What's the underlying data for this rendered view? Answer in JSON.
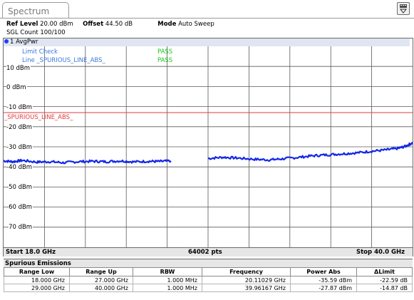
{
  "tab": {
    "title": "Spectrum"
  },
  "info": {
    "ref_level_label": "Ref Level",
    "ref_level_value": "20.00 dBm",
    "offset_label": "Offset",
    "offset_value": "44.50 dB",
    "mode_label": "Mode",
    "mode_value": "Auto Sweep",
    "sgl_count": "SGL Count 100/100"
  },
  "trace": {
    "header": "1 AvgPwr"
  },
  "limit": {
    "check_label": "Limit Check",
    "check_result": "PASS",
    "line_label": "Line _SPURIOUS_LINE_ABS_",
    "line_result": "PASS",
    "line_name": "_SPURIOUS_LINE_ABS_"
  },
  "axis": {
    "y_labels": [
      "10 dBm",
      "0 dBm",
      "-10 dBm",
      "-20 dBm",
      "-30 dBm",
      "-40 dBm",
      "-50 dBm",
      "-60 dBm",
      "-70 dBm"
    ],
    "start": "Start 18.0 GHz",
    "pts": "64002 pts",
    "stop": "Stop 40.0 GHz"
  },
  "colors": {
    "trace": "#1428e6",
    "limit": "#e53b3b",
    "pass": "#19c419",
    "label_blue": "#3a78d8",
    "grid": "#5a5a5a"
  },
  "chart_data": {
    "type": "line",
    "x_unit": "GHz",
    "y_unit": "dBm",
    "xlim": [
      18.0,
      40.0
    ],
    "ylim": [
      -80,
      20
    ],
    "grid": true,
    "limit_line_dbm": -13.0,
    "series": [
      {
        "name": "1 AvgPwr",
        "segments": [
          {
            "x": [
              18.0,
              18.5,
              19.0,
              19.8,
              20.5,
              21.2,
              22.0,
              22.8,
              23.5,
              24.3,
              25.0,
              25.8,
              26.4,
              27.0
            ],
            "y": [
              -37.0,
              -37.4,
              -36.8,
              -37.6,
              -37.4,
              -37.9,
              -37.4,
              -37.2,
              -37.4,
              -37.0,
              -37.5,
              -37.2,
              -37.3,
              -37.0
            ]
          },
          {
            "x": [
              29.0,
              29.8,
              30.6,
              31.5,
              32.3,
              33.0,
              33.8,
              34.6,
              35.4,
              36.2,
              37.0,
              37.8,
              38.6,
              39.2,
              39.6,
              40.0
            ],
            "y": [
              -35.8,
              -35.2,
              -35.6,
              -36.2,
              -36.5,
              -36.0,
              -35.3,
              -34.5,
              -34.0,
              -33.5,
              -33.0,
              -32.2,
              -31.5,
              -30.8,
              -29.8,
              -28.0
            ]
          }
        ]
      }
    ]
  },
  "spurious": {
    "title": "Spurious Emissions",
    "columns": [
      "Range Low",
      "Range Up",
      "RBW",
      "Frequency",
      "Power Abs",
      "ΔLimit"
    ],
    "rows": [
      [
        "18.000 GHz",
        "27.000 GHz",
        "1.000 MHz",
        "20.11029 GHz",
        "-35.59 dBm",
        "-22.59 dB"
      ],
      [
        "29.000 GHz",
        "40.000 GHz",
        "1.000 MHz",
        "39.96167 GHz",
        "-27.87 dBm",
        "-14.87 dB"
      ]
    ]
  }
}
